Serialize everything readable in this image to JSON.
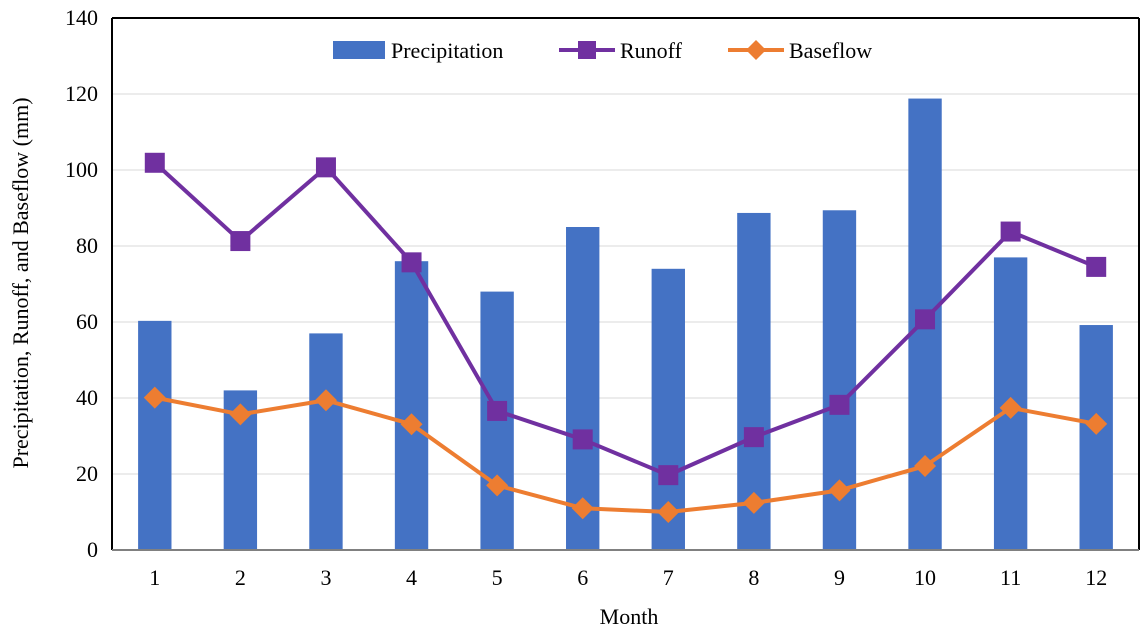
{
  "chart_data": {
    "type": "bar",
    "title": "",
    "xlabel": "Month",
    "ylabel": "Precipitation, Runoff, and Baseflow (mm)",
    "ylim": [
      0,
      140
    ],
    "yticks": [
      0,
      20,
      40,
      60,
      80,
      100,
      120,
      140
    ],
    "grid": true,
    "legend_position": "top-center",
    "categories": [
      "1",
      "2",
      "3",
      "4",
      "5",
      "6",
      "7",
      "8",
      "9",
      "10",
      "11",
      "12"
    ],
    "series": [
      {
        "name": "Precipitation",
        "type": "bar",
        "color": "#4472C4",
        "values": [
          60.3,
          42.0,
          57.0,
          76.0,
          68.0,
          85.0,
          74.0,
          88.7,
          89.4,
          118.8,
          77.0,
          59.2
        ]
      },
      {
        "name": "Runoff",
        "type": "line",
        "marker": "square",
        "color": "#7030A0",
        "values": [
          101.9,
          81.3,
          100.7,
          75.7,
          36.6,
          29.1,
          19.7,
          29.7,
          38.2,
          60.7,
          83.8,
          74.5
        ]
      },
      {
        "name": "Baseflow",
        "type": "line",
        "marker": "diamond",
        "color": "#ED7D31",
        "values": [
          40.1,
          35.7,
          39.4,
          33.1,
          17.0,
          11.0,
          10.0,
          12.4,
          15.7,
          22.1,
          37.4,
          33.2
        ]
      }
    ]
  }
}
